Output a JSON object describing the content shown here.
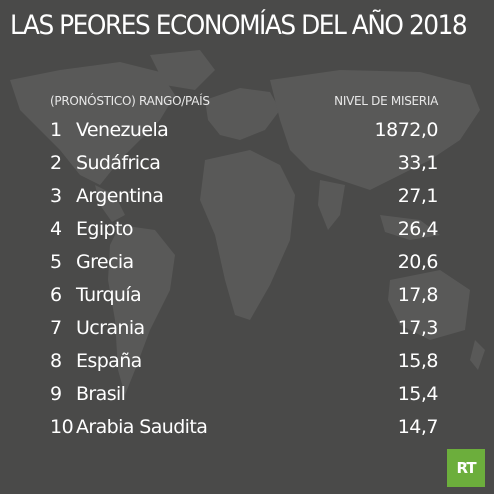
{
  "title": "LAS PEORES ECONOMÍAS DEL AÑO 2018",
  "header": {
    "left": "(PRONÓSTICO) RANGO/PAÍS",
    "right": "NIVEL DE MISERIA"
  },
  "rows": [
    {
      "rank": "1",
      "country": "Venezuela",
      "value": "1872,0"
    },
    {
      "rank": "2",
      "country": "Sudáfrica",
      "value": "33,1"
    },
    {
      "rank": "3",
      "country": "Argentina",
      "value": "27,1"
    },
    {
      "rank": "4",
      "country": "Egipto",
      "value": "26,4"
    },
    {
      "rank": "5",
      "country": "Grecia",
      "value": "20,6"
    },
    {
      "rank": "6",
      "country": "Turquía",
      "value": "17,8"
    },
    {
      "rank": "7",
      "country": "Ucrania",
      "value": "17,3"
    },
    {
      "rank": "8",
      "country": "España",
      "value": "15,8"
    },
    {
      "rank": "9",
      "country": "Brasil",
      "value": "15,4"
    },
    {
      "rank": "10",
      "country": "Arabia Saudita",
      "value": "14,7"
    }
  ],
  "logo": {
    "text": "RT"
  },
  "colors": {
    "background": "#4a4a49",
    "map": "#5b5b5a",
    "logo": "#6cae3c"
  }
}
